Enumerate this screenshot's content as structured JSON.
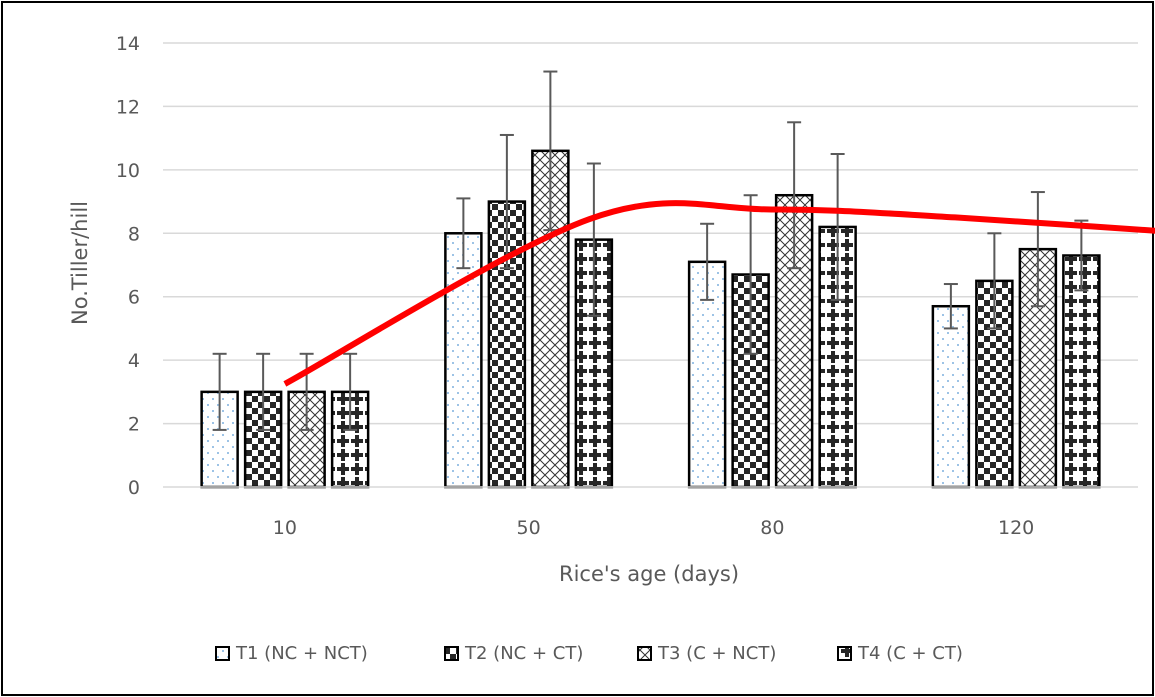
{
  "chart_data": {
    "type": "bar",
    "categories": [
      "10",
      "50",
      "80",
      "120"
    ],
    "series": [
      {
        "name": "T1 (NC + NCT)",
        "values": [
          3.0,
          8.0,
          7.1,
          5.7
        ],
        "errors": [
          1.2,
          1.1,
          1.2,
          0.7
        ],
        "pattern": "dots"
      },
      {
        "name": "T2 (NC + CT)",
        "values": [
          3.0,
          9.0,
          6.7,
          6.5
        ],
        "errors": [
          1.2,
          2.1,
          2.5,
          1.5
        ],
        "pattern": "checker"
      },
      {
        "name": "T3 (C + NCT)",
        "values": [
          3.0,
          10.6,
          9.2,
          7.5
        ],
        "errors": [
          1.2,
          2.5,
          2.3,
          1.8
        ],
        "pattern": "crosshatch"
      },
      {
        "name": "T4 (C + CT)",
        "values": [
          3.0,
          7.8,
          8.2,
          7.3
        ],
        "errors": [
          1.2,
          2.4,
          2.3,
          1.1
        ],
        "pattern": "crosses"
      }
    ],
    "trendline": {
      "color": "#ff0000",
      "x": [
        0.5,
        1.75,
        2.5,
        3.25,
        4.5
      ],
      "y": [
        3.25,
        8.45,
        8.75,
        8.5,
        7.85
      ]
    },
    "xlabel": "Rice's age (days)",
    "ylabel": "No.Tiller/hill",
    "ylim": [
      0,
      14
    ],
    "yticks": [
      0,
      2,
      4,
      6,
      8,
      10,
      12,
      14
    ],
    "grid": true,
    "legend_position": "bottom"
  },
  "colors": {
    "bar_outline": "#000000",
    "error_bar": "#595959",
    "gridline": "#d9d9d9",
    "text": "#595959",
    "trend": "#ff0000"
  }
}
